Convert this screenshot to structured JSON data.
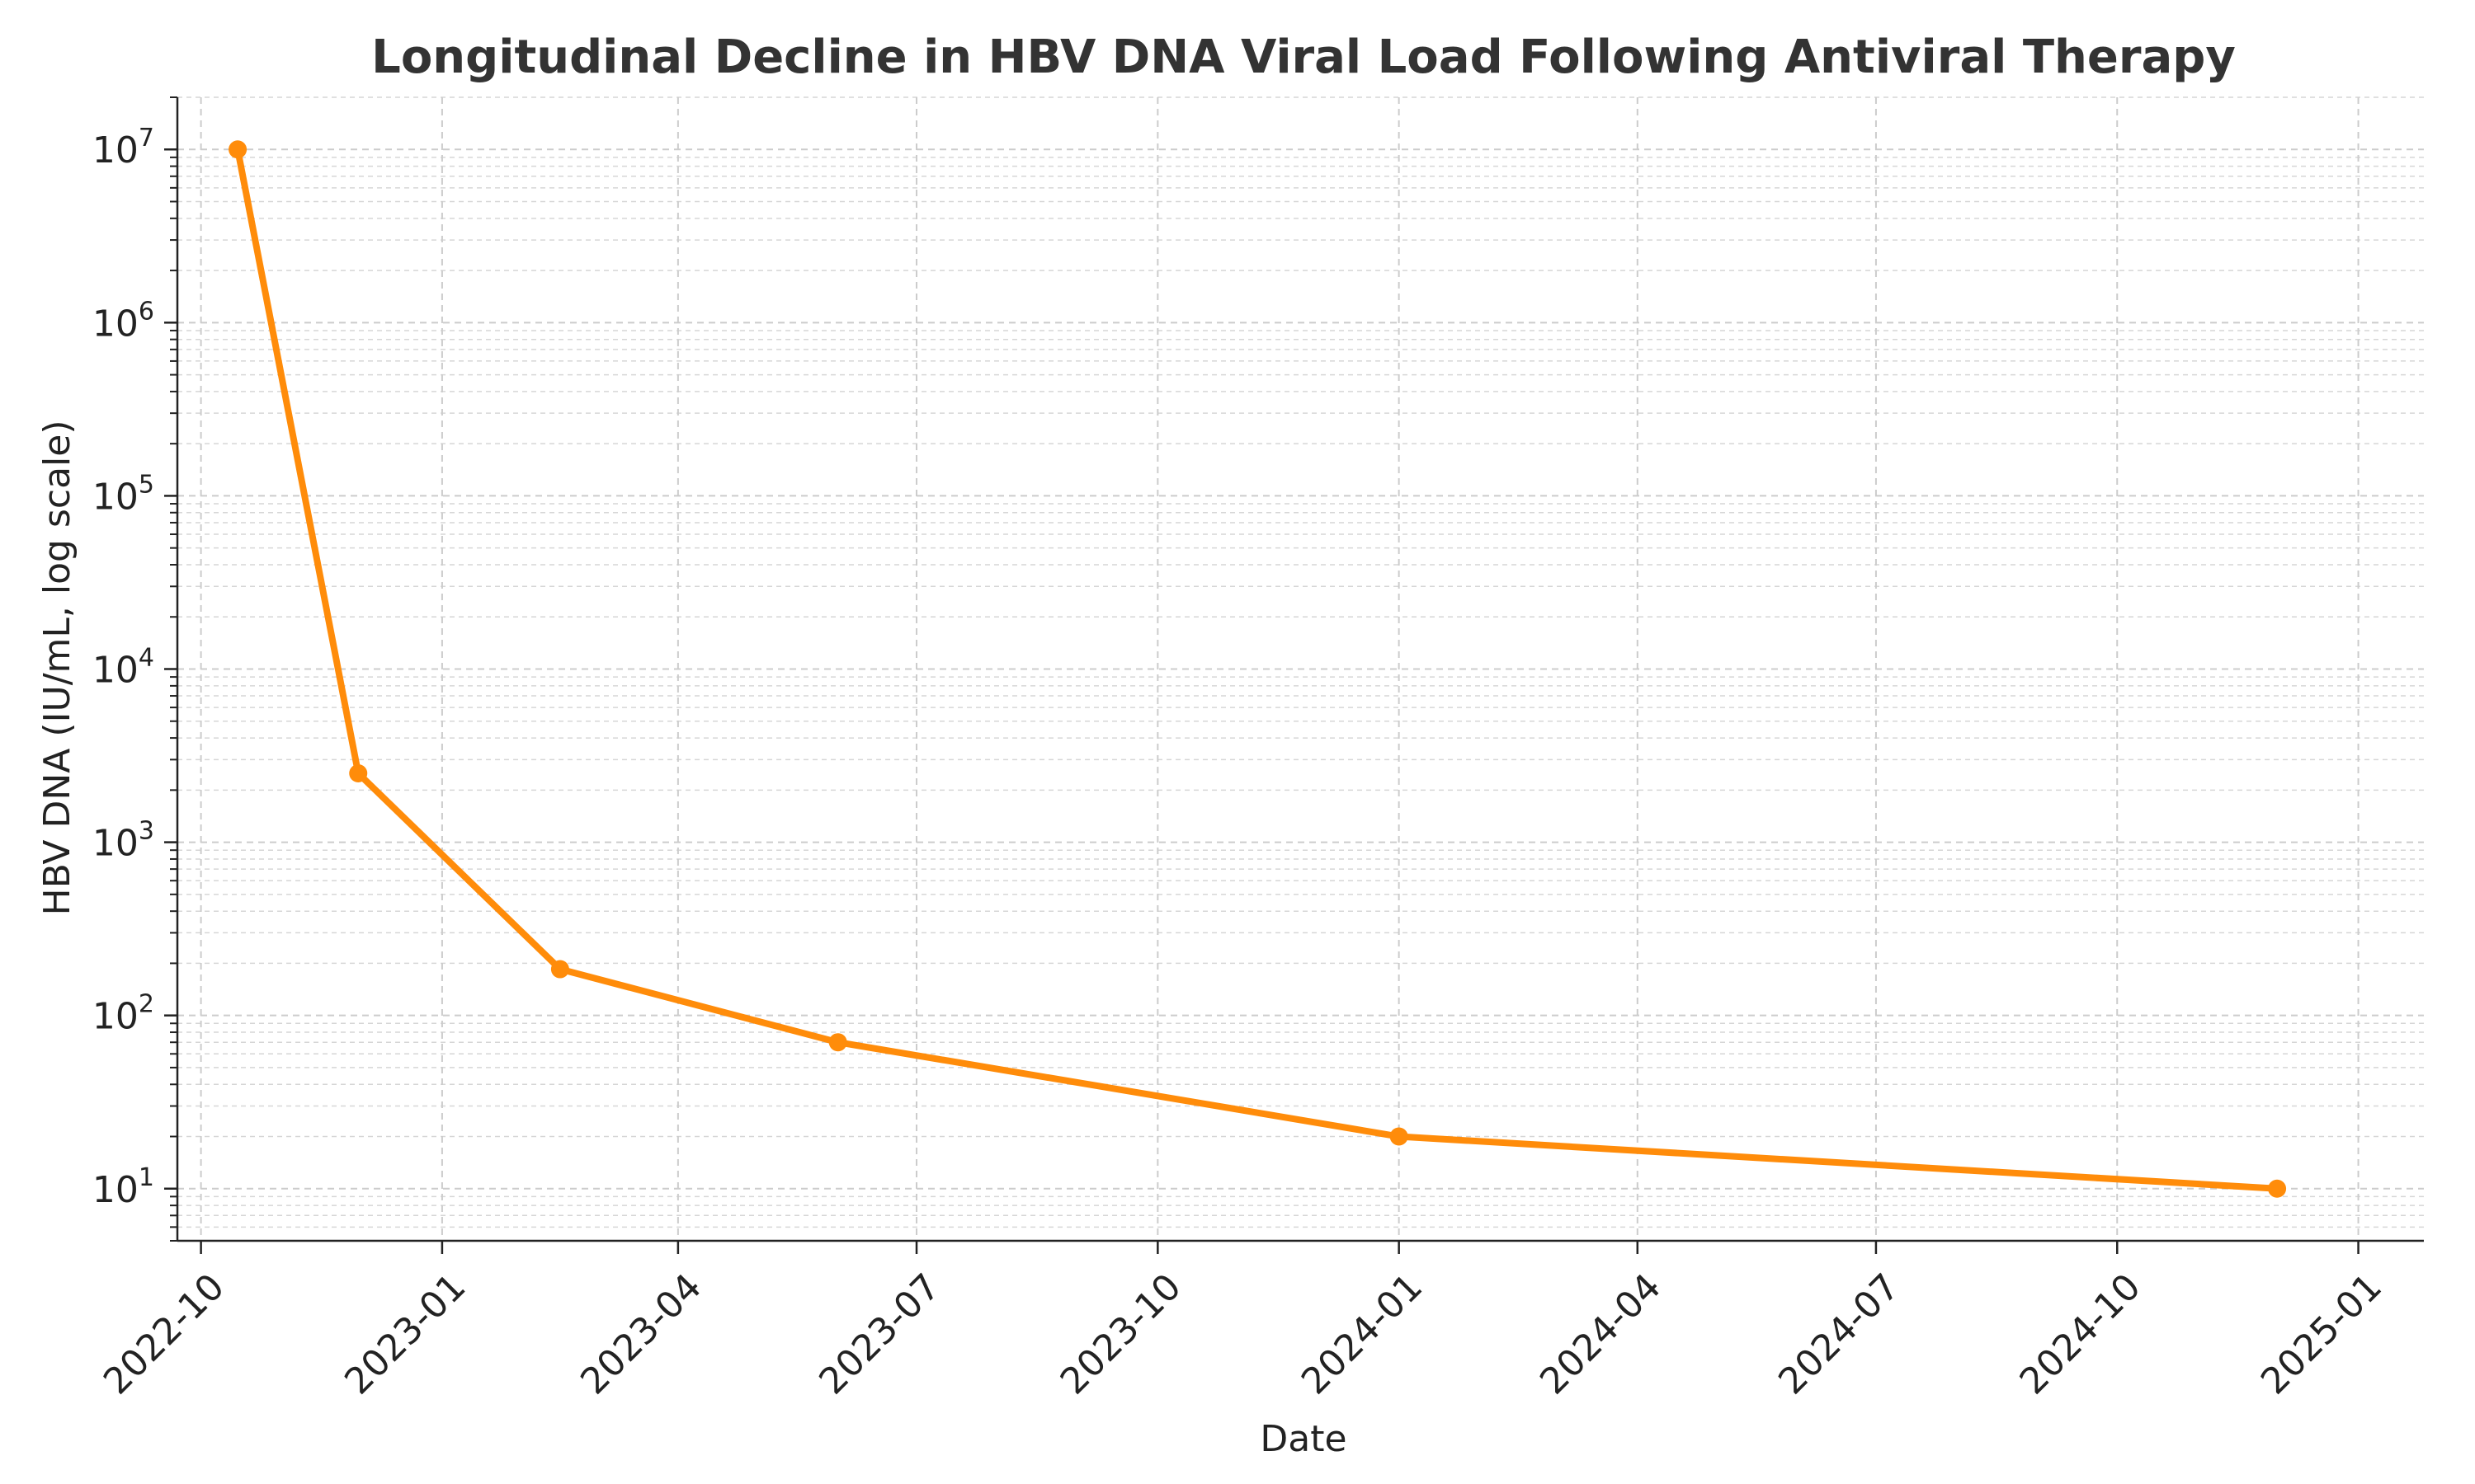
{
  "colors": {
    "series": "#ff8c0a",
    "grid": "#cccccc",
    "axis": "#222222",
    "title": "#333333"
  },
  "chart_data": {
    "type": "line",
    "title": "Longitudinal Decline in HBV DNA Viral Load Following Antiviral Therapy",
    "xlabel": "Date",
    "ylabel": "HBV DNA (IU/mL, log scale)",
    "y_scale": "log",
    "ylim": [
      5,
      20000000
    ],
    "xlim": [
      "2022-09-22",
      "2025-01-26"
    ],
    "grid": true,
    "legend": "none",
    "x_ticks": [
      "2022-10",
      "2023-01",
      "2023-04",
      "2023-07",
      "2023-10",
      "2024-01",
      "2024-04",
      "2024-07",
      "2024-10",
      "2025-01"
    ],
    "y_ticks": [
      {
        "value": 10,
        "base": "10",
        "exp": "1"
      },
      {
        "value": 100,
        "base": "10",
        "exp": "2"
      },
      {
        "value": 1000,
        "base": "10",
        "exp": "3"
      },
      {
        "value": 10000,
        "base": "10",
        "exp": "4"
      },
      {
        "value": 100000,
        "base": "10",
        "exp": "5"
      },
      {
        "value": 1000000,
        "base": "10",
        "exp": "6"
      },
      {
        "value": 10000000,
        "base": "10",
        "exp": "7"
      }
    ],
    "series": [
      {
        "x": [
          "2022-10-15",
          "2022-11-30",
          "2023-02-15",
          "2023-06-01",
          "2024-01-01",
          "2024-12-01"
        ],
        "y": [
          10000000,
          2500,
          185,
          70,
          20,
          10
        ]
      }
    ]
  }
}
